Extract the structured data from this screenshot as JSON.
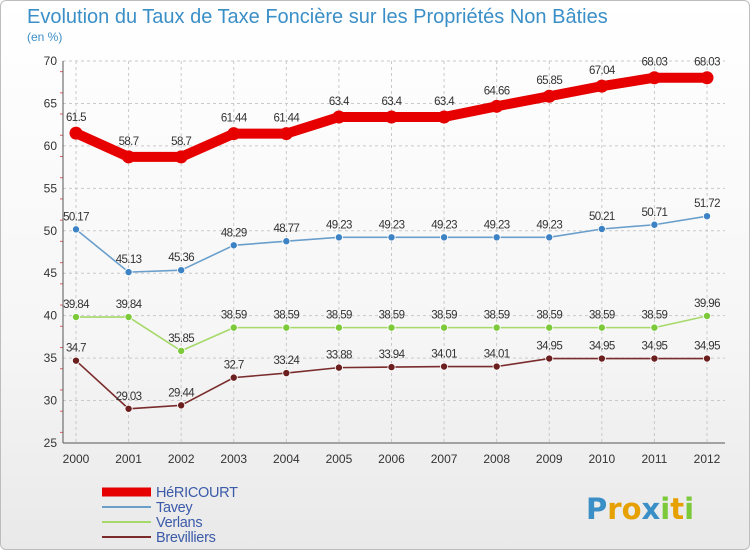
{
  "chart_data": {
    "type": "line",
    "title": "Evolution du Taux de Taxe Foncière sur les Propriétés Non Bâties",
    "ylabel": "(en %)",
    "xlabel": "",
    "ylim": [
      25,
      70
    ],
    "yticks": [
      25,
      30,
      35,
      40,
      45,
      50,
      55,
      60,
      65,
      70
    ],
    "categories": [
      "2000",
      "2001",
      "2002",
      "2003",
      "2004",
      "2005",
      "2006",
      "2007",
      "2008",
      "2009",
      "2010",
      "2011",
      "2012"
    ],
    "legend_position": "bottom-left",
    "series": [
      {
        "name": "HéRICOURT",
        "color": "#e60000",
        "thick": true,
        "values": [
          61.5,
          58.7,
          58.7,
          61.44,
          61.44,
          63.4,
          63.4,
          63.4,
          64.66,
          65.85,
          67.04,
          68.03,
          68.03
        ],
        "labels": [
          "61.5",
          "58.7",
          "58.7",
          "61.44",
          "61.44",
          "63.4",
          "63.4",
          "63.4",
          "64.66",
          "65.85",
          "67.04",
          "68.03",
          "68.03"
        ]
      },
      {
        "name": "Tavey",
        "color": "#6a9fcc",
        "marker": "#3d82c4",
        "thick": false,
        "values": [
          50.17,
          45.13,
          45.36,
          48.29,
          48.77,
          49.23,
          49.23,
          49.23,
          49.23,
          49.23,
          50.21,
          50.71,
          51.72
        ],
        "labels": [
          "50.17",
          "45.13",
          "45.36",
          "48.29",
          "48.77",
          "49.23",
          "49.23",
          "49.23",
          "49.23",
          "49.23",
          "50.21",
          "50.71",
          "51.72"
        ]
      },
      {
        "name": "Verlans",
        "color": "#a6d96a",
        "marker": "#7cc93a",
        "thick": false,
        "values": [
          39.84,
          39.84,
          35.85,
          38.59,
          38.59,
          38.59,
          38.59,
          38.59,
          38.59,
          38.59,
          38.59,
          38.59,
          39.96
        ],
        "labels": [
          "39.84",
          "39.84",
          "35.85",
          "38.59",
          "38.59",
          "38.59",
          "38.59",
          "38.59",
          "38.59",
          "38.59",
          "38.59",
          "38.59",
          "39.96"
        ]
      },
      {
        "name": "Brevilliers",
        "color": "#7a2c2c",
        "marker": "#6b1f1f",
        "thick": false,
        "values": [
          34.7,
          29.03,
          29.44,
          32.7,
          33.24,
          33.88,
          33.94,
          34.01,
          34.01,
          34.95,
          34.95,
          34.95,
          34.95
        ],
        "labels": [
          "34.7",
          "29.03",
          "29.44",
          "32.7",
          "33.24",
          "33.88",
          "33.94",
          "34.01",
          "34.01",
          "34.95",
          "34.95",
          "34.95",
          "34.95"
        ]
      }
    ]
  },
  "logo": {
    "letters": [
      "P",
      "r",
      "o",
      "x",
      "i",
      "t",
      "i"
    ],
    "colors": [
      "#3b8fc7",
      "#e6a100",
      "#e6a100",
      "#3b8fc7",
      "#7cc93a",
      "#e6a100",
      "#7cc93a"
    ]
  }
}
